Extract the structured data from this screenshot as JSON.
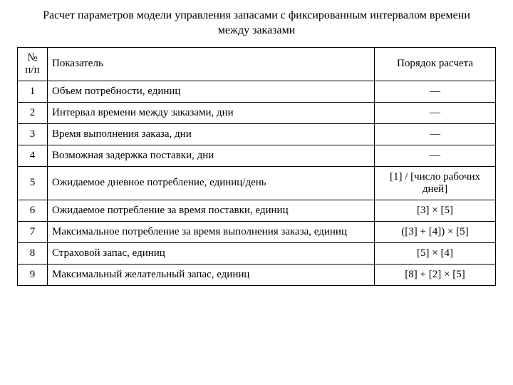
{
  "title": "Расчет параметров модели управления запасами с фиксированным интервалом времени между заказами",
  "columns": {
    "num": "№ п/п",
    "indicator": "Показатель",
    "calc": "Порядок расчета"
  },
  "rows": [
    {
      "num": "1",
      "indicator": "Объем потребности, единиц",
      "calc": "—"
    },
    {
      "num": "2",
      "indicator": "Интервал времени между заказами, дни",
      "calc": "—"
    },
    {
      "num": "3",
      "indicator": "Время выполнения заказа, дни",
      "calc": "—"
    },
    {
      "num": "4",
      "indicator": "Возможная задержка поставки, дни",
      "calc": "—"
    },
    {
      "num": "5",
      "indicator": "Ожидаемое дневное потребление, единиц/день",
      "calc": "[1] / [число рабочих дней]"
    },
    {
      "num": "6",
      "indicator": "Ожидаемое потребление за время поставки, единиц",
      "calc": "[3] × [5]"
    },
    {
      "num": "7",
      "indicator": "Максимальное потребление за время выполнения заказа, единиц",
      "calc": "([3] + [4]) × [5]"
    },
    {
      "num": "8",
      "indicator": "Страховой запас, единиц",
      "calc": "[5] × [4]"
    },
    {
      "num": "9",
      "indicator": "Максимальный желательный запас, единиц",
      "calc": "[8] + [2] × [5]"
    }
  ],
  "styling": {
    "font_family": "Times New Roman",
    "title_fontsize": 16,
    "body_fontsize": 15,
    "border_color": "#000000",
    "background_color": "#ffffff",
    "text_color": "#000000",
    "col_widths": {
      "num": 42,
      "calc": 170
    }
  }
}
